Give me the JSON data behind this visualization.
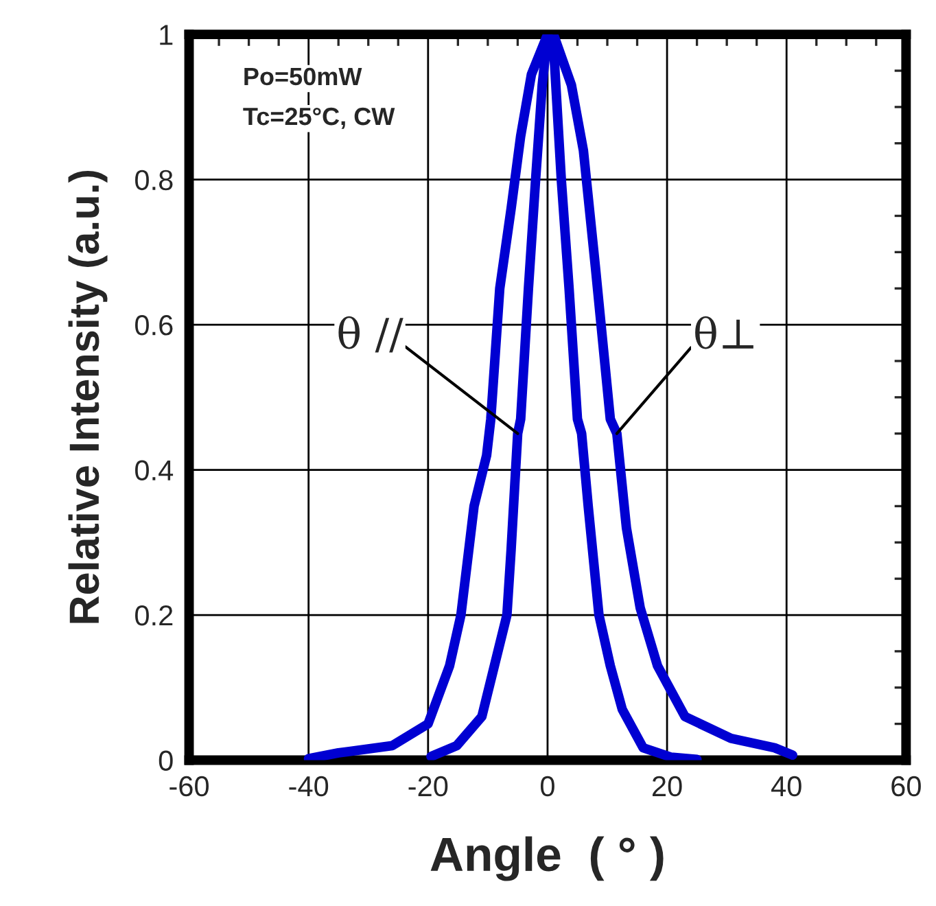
{
  "chart_data": {
    "type": "line",
    "xlabel": "Angle  ( ° )",
    "ylabel": "Relative Intensity (a.u.)",
    "annotations": [
      "Po=50mW",
      "Tc=25°C, CW"
    ],
    "xlim": [
      -60,
      60
    ],
    "ylim": [
      0,
      1
    ],
    "xticks": [
      -60,
      {
        "value": -55,
        "label": null
      },
      -40,
      {
        "value": -50,
        "label": null
      },
      {
        "value": -45,
        "label": null
      },
      {
        "value": -35,
        "label": null
      },
      {
        "value": -30,
        "label": null
      },
      {
        "value": -25,
        "label": null
      },
      -20,
      {
        "value": -15,
        "label": null
      },
      {
        "value": -10,
        "label": null
      },
      {
        "value": -5,
        "label": null
      },
      0,
      {
        "value": 5,
        "label": null
      },
      {
        "value": 10,
        "label": null
      },
      {
        "value": 15,
        "label": null
      },
      20,
      {
        "value": 25,
        "label": null
      },
      {
        "value": 30,
        "label": null
      },
      {
        "value": 35,
        "label": null
      },
      40,
      {
        "value": 45,
        "label": null
      },
      {
        "value": 50,
        "label": null
      },
      {
        "value": 55,
        "label": null
      },
      60
    ],
    "yticks": [
      0,
      {
        "value": 0.05,
        "label": null
      },
      {
        "value": 0.1,
        "label": null
      },
      {
        "value": 0.15,
        "label": null
      },
      0.2,
      {
        "value": 0.25,
        "label": null
      },
      {
        "value": 0.3,
        "label": null
      },
      {
        "value": 0.35,
        "label": null
      },
      0.4,
      {
        "value": 0.45,
        "label": null
      },
      {
        "value": 0.5,
        "label": null
      },
      {
        "value": 0.55,
        "label": null
      },
      0.6,
      {
        "value": 0.65,
        "label": null
      },
      {
        "value": 0.7,
        "label": null
      },
      {
        "value": 0.75,
        "label": null
      },
      0.8,
      {
        "value": 0.85,
        "label": null
      },
      {
        "value": 0.9,
        "label": null
      },
      {
        "value": 0.95,
        "label": null
      },
      1
    ],
    "grid": true,
    "legend": false,
    "marker": "none",
    "line_style": "solid",
    "series": [
      {
        "name": "θ //",
        "color": "#0000d2",
        "x": [
          -19.5,
          -15.2,
          -11,
          -8.9,
          -6.8,
          -6.1,
          -5,
          -4.5,
          -3.2,
          -2,
          -0.9,
          0,
          1.1,
          2.3,
          3.6,
          5,
          5.7,
          6.8,
          8.6,
          10.5,
          12.5,
          16,
          20.7,
          25
        ],
        "values": [
          0.005,
          0.02,
          0.06,
          0.13,
          0.2,
          0.29,
          0.45,
          0.47,
          0.65,
          0.8,
          0.93,
          1,
          0.97,
          0.8,
          0.65,
          0.47,
          0.45,
          0.35,
          0.2,
          0.13,
          0.07,
          0.017,
          0.004,
          0.001
        ]
      },
      {
        "name": "θ⊥",
        "color": "#0000d2",
        "x": [
          -40,
          -35,
          -26,
          -20,
          -16.4,
          -14.5,
          -12.3,
          -10.2,
          -9.5,
          -8,
          -6.1,
          -4.5,
          -2.7,
          0,
          1,
          4,
          6,
          8,
          10.5,
          11.6,
          13.2,
          15.5,
          18.4,
          23,
          30.7,
          38,
          41
        ],
        "values": [
          0.002,
          0.01,
          0.02,
          0.05,
          0.13,
          0.2,
          0.35,
          0.42,
          0.47,
          0.65,
          0.76,
          0.86,
          0.945,
          1,
          1,
          0.93,
          0.84,
          0.68,
          0.47,
          0.45,
          0.32,
          0.21,
          0.13,
          0.06,
          0.03,
          0.017,
          0.007
        ]
      }
    ]
  }
}
